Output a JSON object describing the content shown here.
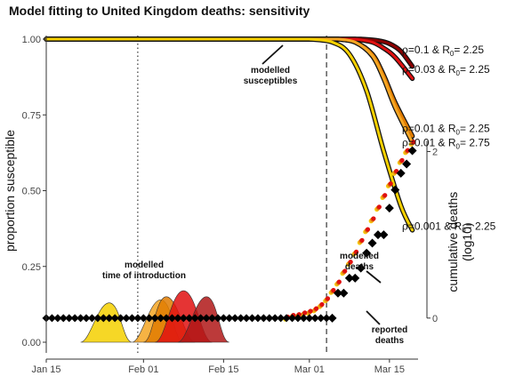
{
  "chart_data": {
    "type": "line",
    "title": "Model fitting to United Kingdom deaths: sensitivity",
    "xlabel": "",
    "ylabel": "proportion susceptible",
    "y2label_lines": [
      "cumulative deaths",
      "(log10)"
    ],
    "x_tick_labels": [
      "Jan 15",
      "Feb 01",
      "Feb 15",
      "Mar 01",
      "Mar 15"
    ],
    "x_ticks": [
      "2020-01-15",
      "2020-02-01",
      "2020-02-15",
      "2020-03-01",
      "2020-03-15"
    ],
    "xlim": [
      "2020-01-15",
      "2020-03-20"
    ],
    "ylim": [
      0,
      1
    ],
    "y_ticks": [
      0.0,
      0.25,
      0.5,
      0.75,
      1.0
    ],
    "y_tick_labels": [
      "0.00",
      "0.25",
      "0.50",
      "0.75",
      "1.00"
    ],
    "y2_ticks": [
      0,
      2
    ],
    "y2_tick_labels": [
      "0",
      "2"
    ],
    "y2lim": [
      -0.29,
      3.35
    ],
    "vlines": [
      {
        "date": "2020-01-31",
        "style": "dotted"
      },
      {
        "date": "2020-03-04",
        "style": "dashed"
      }
    ],
    "susceptible_series": [
      {
        "rho": "0.1",
        "R0": "2.25",
        "color": "#8b0000",
        "x": [
          "2020-03-10",
          "2020-03-13",
          "2020-03-15",
          "2020-03-17",
          "2020-03-19"
        ],
        "y": [
          1.0,
          0.995,
          0.985,
          0.96,
          0.91
        ]
      },
      {
        "rho": "0.03",
        "R0": "2.25",
        "color": "#e01010",
        "x": [
          "2020-03-09",
          "2020-03-12",
          "2020-03-14",
          "2020-03-16",
          "2020-03-19"
        ],
        "y": [
          1.0,
          0.99,
          0.97,
          0.94,
          0.87
        ]
      },
      {
        "rho": "0.01",
        "R0": "2.25",
        "color": "#e07b00",
        "x": [
          "2020-03-06",
          "2020-03-09",
          "2020-03-12",
          "2020-03-14",
          "2020-03-16",
          "2020-03-19"
        ],
        "y": [
          1.0,
          0.99,
          0.95,
          0.88,
          0.79,
          0.68
        ]
      },
      {
        "rho": "0.01",
        "R0": "2.75",
        "color": "#f5a623",
        "x": [
          "2020-03-06",
          "2020-03-09",
          "2020-03-12",
          "2020-03-14",
          "2020-03-16",
          "2020-03-19"
        ],
        "y": [
          1.0,
          0.99,
          0.945,
          0.87,
          0.775,
          0.66
        ]
      },
      {
        "rho": "0.001",
        "R0": "2.25",
        "color": "#f5d000",
        "x": [
          "2020-03-01",
          "2020-03-05",
          "2020-03-08",
          "2020-03-11",
          "2020-03-14",
          "2020-03-17",
          "2020-03-19"
        ],
        "y": [
          1.0,
          0.99,
          0.95,
          0.83,
          0.63,
          0.45,
          0.37
        ]
      }
    ],
    "susceptible_labels": [
      {
        "rho": "0.1",
        "R0": "2.25",
        "y": 0.965
      },
      {
        "rho": "0.03",
        "R0": "2.25",
        "y": 0.9
      },
      {
        "rho": "0.01",
        "R0": "2.25",
        "y": 0.705
      },
      {
        "rho": "0.01",
        "R0": "2.75",
        "y": 0.658
      },
      {
        "rho": "0.001",
        "R0": "2.25",
        "y": 0.383
      }
    ],
    "introduction_densities": [
      {
        "color": "#f5d000",
        "peak_date": "2020-01-26",
        "peak_y": 0.13,
        "left_date": "2020-01-21",
        "right_date": "2020-01-30"
      },
      {
        "color": "#f5a623",
        "peak_date": "2020-02-04",
        "peak_y": 0.14,
        "left_date": "2020-01-30",
        "right_date": "2020-02-08"
      },
      {
        "color": "#e07b00",
        "peak_date": "2020-02-05",
        "peak_y": 0.15,
        "left_date": "2020-02-01",
        "right_date": "2020-02-10"
      },
      {
        "color": "#e01010",
        "peak_date": "2020-02-08",
        "peak_y": 0.17,
        "left_date": "2020-02-03",
        "right_date": "2020-02-13"
      },
      {
        "color": "#b01818",
        "peak_date": "2020-02-12",
        "peak_y": 0.15,
        "left_date": "2020-02-07",
        "right_date": "2020-02-16"
      }
    ],
    "reported_deaths_log10": {
      "x": [
        "2020-03-05",
        "2020-03-06",
        "2020-03-07",
        "2020-03-08",
        "2020-03-09",
        "2020-03-10",
        "2020-03-11",
        "2020-03-12",
        "2020-03-13",
        "2020-03-14",
        "2020-03-15",
        "2020-03-16",
        "2020-03-17",
        "2020-03-18",
        "2020-03-19"
      ],
      "y": [
        0.0,
        0.3,
        0.3,
        0.48,
        0.48,
        0.6,
        0.78,
        0.9,
        1.0,
        1.0,
        1.32,
        1.54,
        1.74,
        1.85,
        2.01
      ]
    },
    "modelled_deaths_log10": {
      "colors": [
        "#f5d000",
        "#f5a623",
        "#e07b00",
        "#e01010"
      ],
      "x": [
        "2020-02-26",
        "2020-02-27",
        "2020-02-28",
        "2020-02-29",
        "2020-03-01",
        "2020-03-02",
        "2020-03-03",
        "2020-03-04",
        "2020-03-05",
        "2020-03-06",
        "2020-03-07",
        "2020-03-08",
        "2020-03-09",
        "2020-03-10",
        "2020-03-11",
        "2020-03-12",
        "2020-03-13",
        "2020-03-14",
        "2020-03-15",
        "2020-03-16",
        "2020-03-17",
        "2020-03-18",
        "2020-03-19"
      ],
      "y": [
        0.0,
        0.02,
        0.03,
        0.05,
        0.07,
        0.1,
        0.15,
        0.22,
        0.32,
        0.42,
        0.55,
        0.66,
        0.78,
        0.92,
        1.05,
        1.18,
        1.32,
        1.46,
        1.6,
        1.75,
        1.88,
        2.0,
        2.1
      ]
    },
    "annotations": [
      {
        "text_lines": [
          "modelled",
          "susceptibles"
        ]
      },
      {
        "text_lines": [
          "modelled",
          "time of introduction"
        ]
      },
      {
        "text_lines": [
          "modelled",
          "deaths"
        ]
      },
      {
        "text_lines": [
          "reported",
          "deaths"
        ]
      }
    ],
    "series_label_parts": {
      "rho": "ρ=",
      "sep": "  &  ",
      "R": "R",
      "sub": "0",
      "eq": "= "
    },
    "grid": false,
    "legend": "none"
  }
}
